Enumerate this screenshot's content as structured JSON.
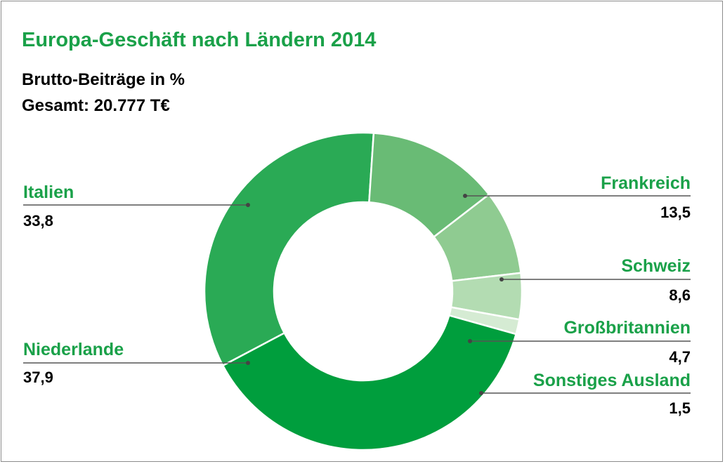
{
  "title": "Europa-Geschäft nach Ländern 2014",
  "subtitle_line1": "Brutto-Beiträge in %",
  "subtitle_line2": "Gesamt: 20.777 T€",
  "colors": {
    "title": "#1aa149",
    "label": "#1aa149",
    "leader": "#555555"
  },
  "chart_data": {
    "type": "pie",
    "variant": "donut",
    "title": "Europa-Geschäft nach Ländern 2014",
    "unit": "%",
    "slices": [
      {
        "name": "Italien",
        "value": 33.8,
        "display": "33,8",
        "color": "#2aaa55",
        "side": "left"
      },
      {
        "name": "Frankreich",
        "value": 13.5,
        "display": "13,5",
        "color": "#69bb75",
        "side": "right"
      },
      {
        "name": "Schweiz",
        "value": 8.6,
        "display": "8,6",
        "color": "#8fcb91",
        "side": "right"
      },
      {
        "name": "Großbritannien",
        "value": 4.7,
        "display": "4,7",
        "color": "#b3dcb2",
        "side": "right"
      },
      {
        "name": "Sonstiges Ausland",
        "value": 1.5,
        "display": "1,5",
        "color": "#d5ebd3",
        "side": "right"
      },
      {
        "name": "Niederlande",
        "value": 37.9,
        "display": "37,9",
        "color": "#009e3d",
        "side": "left"
      }
    ]
  }
}
